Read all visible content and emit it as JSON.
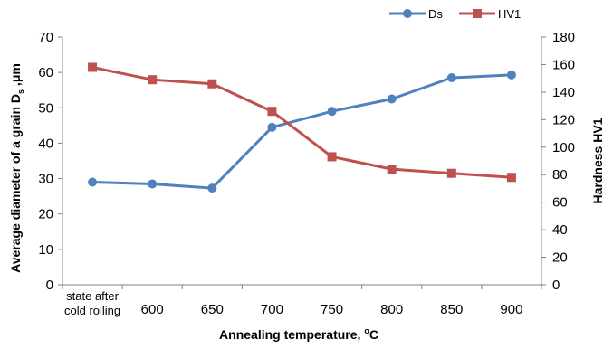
{
  "chart_data": {
    "type": "line",
    "categories": [
      "state after cold rolling",
      "600",
      "650",
      "700",
      "750",
      "800",
      "850",
      "900"
    ],
    "category_label_lines": [
      [
        "state after",
        "cold rolling"
      ],
      [
        "600"
      ],
      [
        "650"
      ],
      [
        "700"
      ],
      [
        "750"
      ],
      [
        "800"
      ],
      [
        "850"
      ],
      [
        "900"
      ]
    ],
    "xlabel": "Annealing temperature, °C",
    "xlabel_parts": {
      "main": "Annealing temperature, ",
      "sup": "o",
      "end": "C"
    },
    "ylabel_left": "Average diameter of a grain Ds ,μm",
    "ylabel_left_parts": {
      "main": "Average diameter of a grain D",
      "sub": "s",
      "end": " ,μm"
    },
    "ylabel_right": "Hardness HV1",
    "ylim_left": [
      0,
      70
    ],
    "yticks_left": [
      0,
      10,
      20,
      30,
      40,
      50,
      60,
      70
    ],
    "ylim_right": [
      0,
      180
    ],
    "yticks_right": [
      0,
      20,
      40,
      60,
      80,
      100,
      120,
      140,
      160,
      180
    ],
    "grid": false,
    "legend_position": "top-right",
    "series": [
      {
        "name": "Ds",
        "axis": "left",
        "color": "#4f81bd",
        "marker": "circle",
        "values": [
          29,
          28.5,
          27.3,
          44.5,
          49,
          52.5,
          58.5,
          59.3
        ]
      },
      {
        "name": "HV1",
        "axis": "right",
        "color": "#c0504d",
        "marker": "square",
        "values": [
          158,
          149,
          146,
          126,
          93,
          84,
          81,
          78
        ]
      }
    ]
  }
}
